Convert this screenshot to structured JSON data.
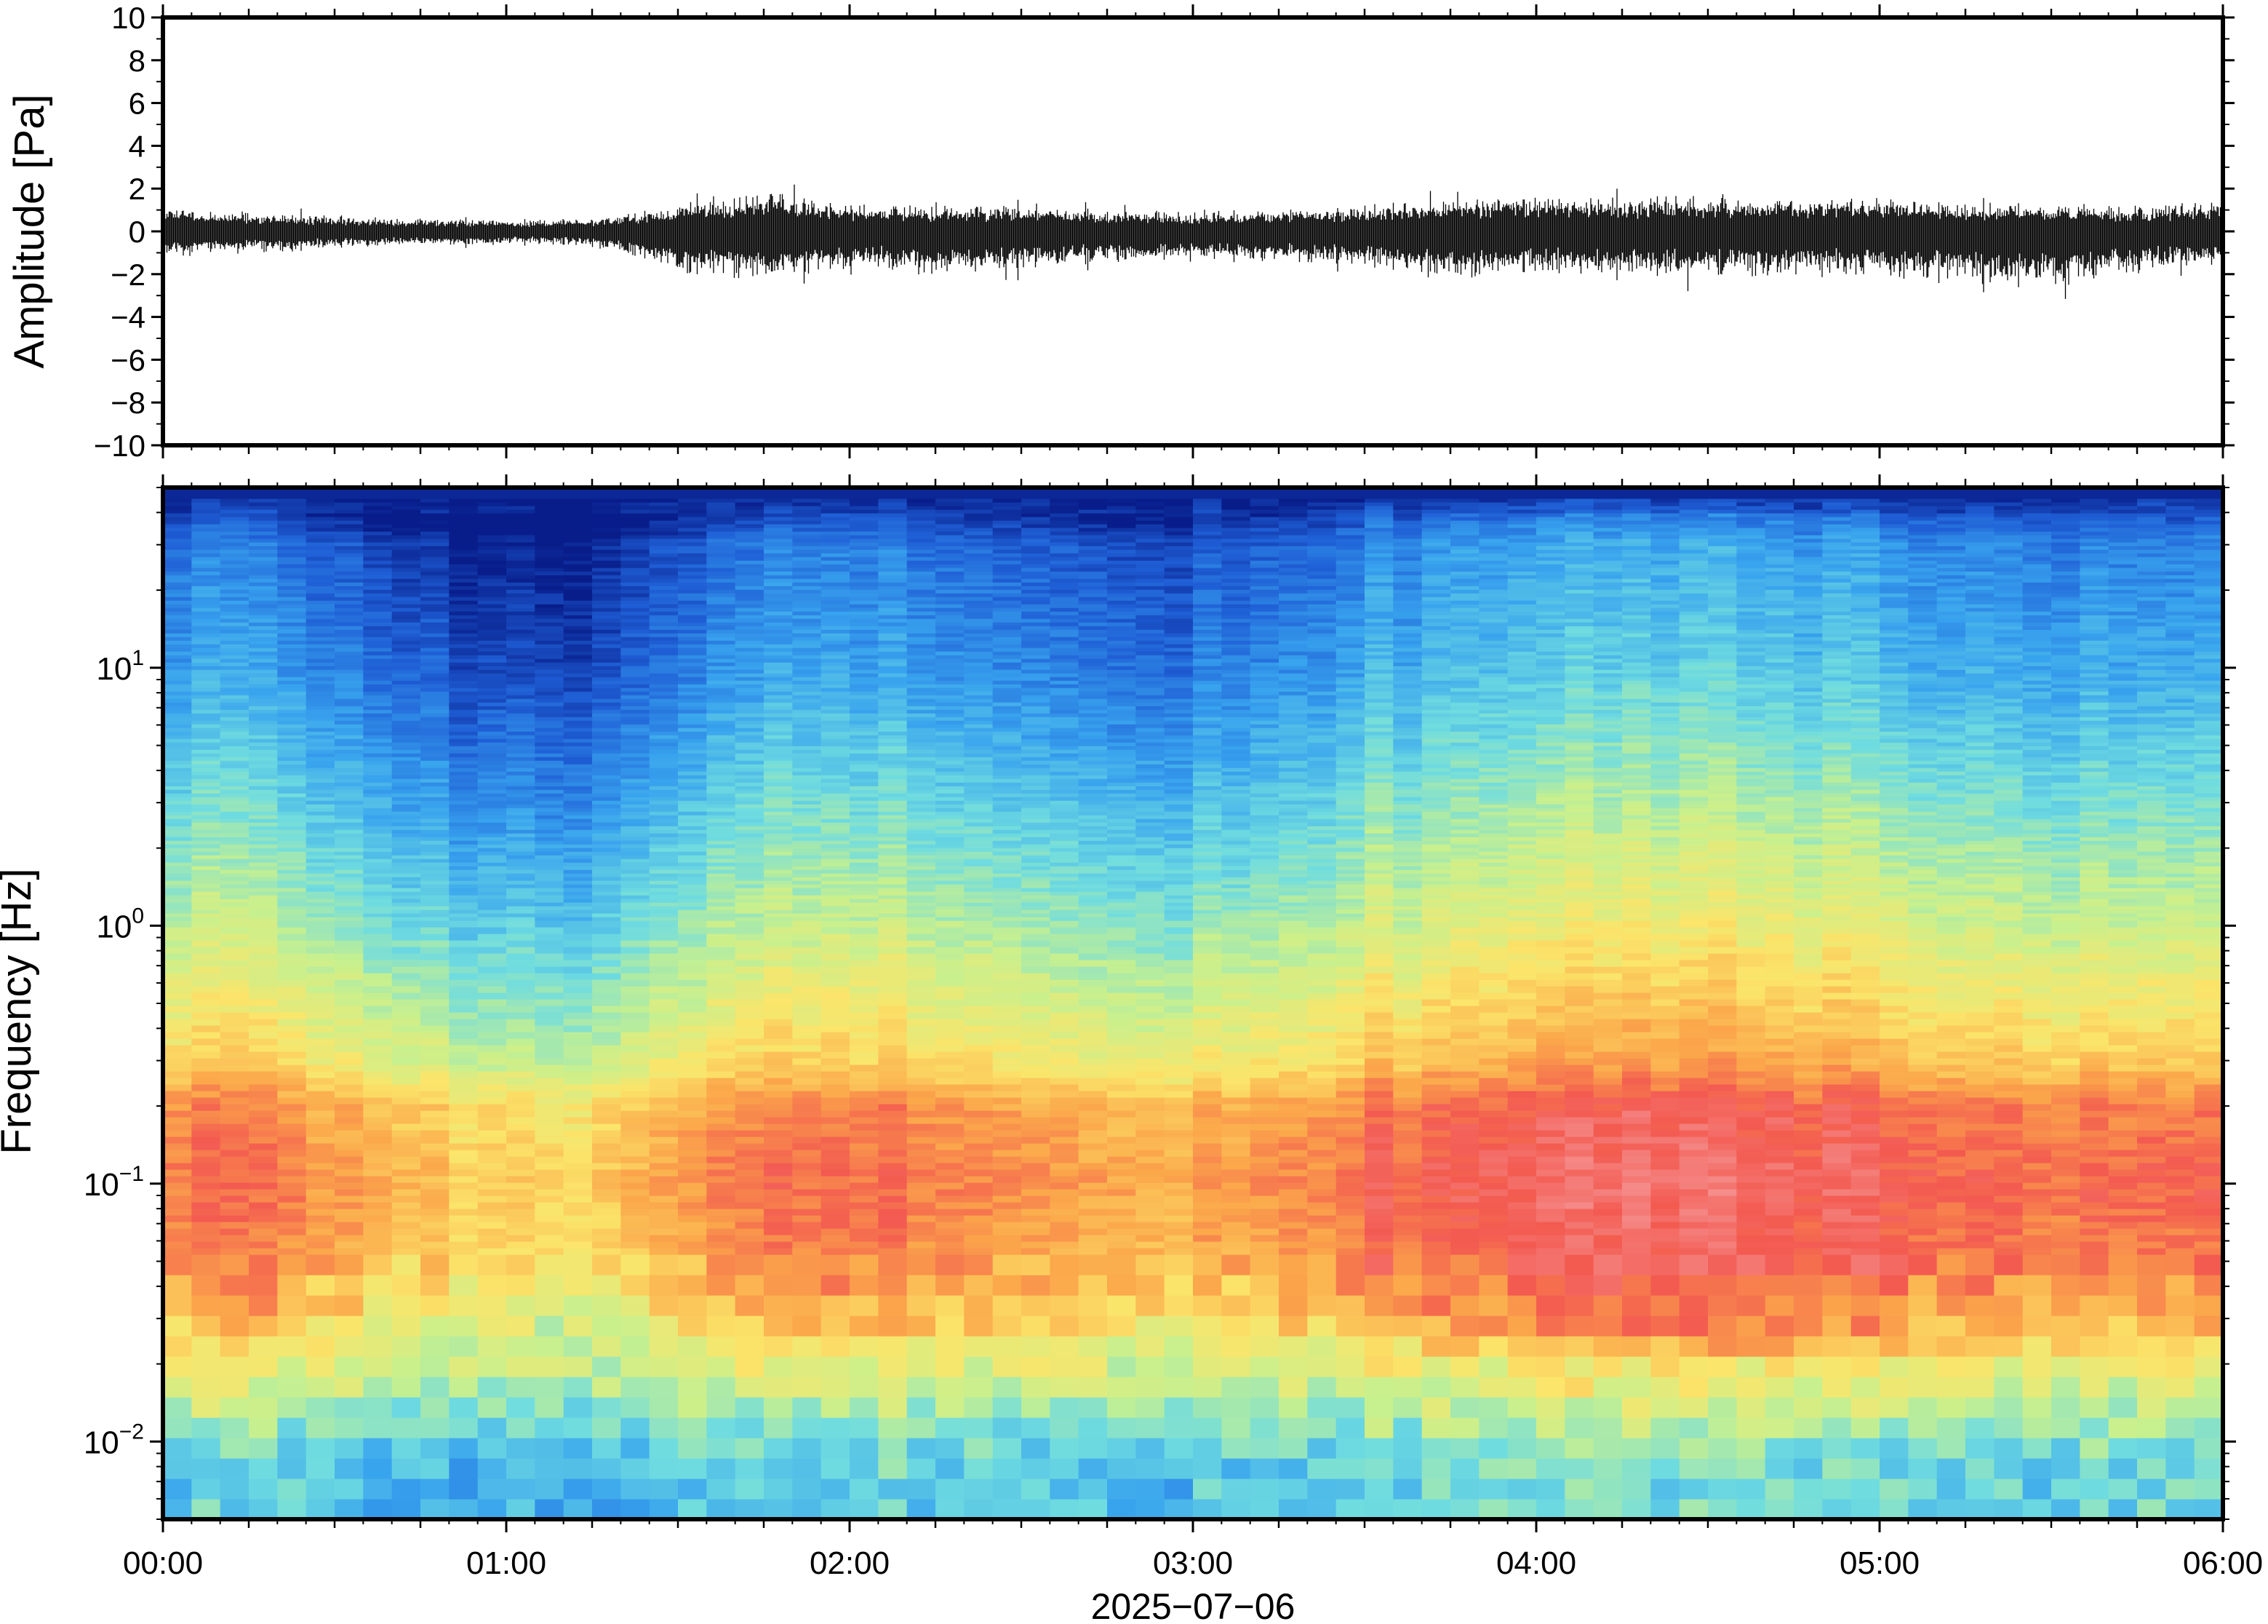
{
  "chart_data": [
    {
      "type": "line",
      "title": "",
      "xlabel": "",
      "ylabel": "Amplitude [Pa]",
      "ylim": [
        -10,
        10
      ],
      "yticks": [
        10,
        8,
        6,
        4,
        2,
        0,
        -2,
        -4,
        -6,
        -8,
        -10
      ],
      "ytick_labels": [
        "10",
        "8",
        "6",
        "4",
        "2",
        "0",
        "−2",
        "−4",
        "−6",
        "−8",
        "−10"
      ],
      "x": [
        "00:00",
        "00:15",
        "00:30",
        "00:45",
        "01:00",
        "01:15",
        "01:30",
        "01:45",
        "02:00",
        "02:15",
        "02:30",
        "02:45",
        "03:00",
        "03:15",
        "03:30",
        "03:45",
        "04:00",
        "04:15",
        "04:30",
        "04:45",
        "05:00",
        "05:15",
        "05:30",
        "05:45",
        "06:00"
      ],
      "series": [
        {
          "values_max": [
            1.5,
            1.2,
            1.0,
            0.8,
            0.7,
            0.8,
            1.6,
            2.5,
            1.7,
            1.5,
            1.6,
            1.4,
            1.2,
            1.3,
            1.6,
            2.0,
            2.3,
            2.1,
            2.2,
            2.0,
            2.1,
            1.8,
            1.7,
            1.6,
            1.9
          ],
          "values_min": [
            -1.5,
            -1.3,
            -1.1,
            -0.9,
            -0.8,
            -0.9,
            -2.5,
            -3.0,
            -2.3,
            -2.6,
            -2.3,
            -2.0,
            -1.8,
            -1.9,
            -2.2,
            -3.0,
            -2.7,
            -2.8,
            -2.9,
            -2.7,
            -2.8,
            -3.3,
            -3.5,
            -2.6,
            -2.0
          ],
          "color": "#000000"
        }
      ]
    },
    {
      "type": "heatmap",
      "title": "",
      "xlabel": "2025−07−06",
      "ylabel": "Frequency [Hz]",
      "y_scale": "log",
      "ylim": [
        0.005,
        50
      ],
      "ytick_labels": [
        {
          "base": "10",
          "exp": "1"
        },
        {
          "base": "10",
          "exp": "0"
        },
        {
          "base": "10",
          "exp": "−1"
        },
        {
          "base": "10",
          "exp": "−2"
        }
      ],
      "yticks": [
        10,
        1,
        0.1,
        0.01
      ],
      "xlim": [
        "00:00",
        "06:00"
      ],
      "xtick_labels": [
        "00:00",
        "01:00",
        "02:00",
        "03:00",
        "04:00",
        "05:00",
        "06:00"
      ],
      "colormap": [
        "#081d8a",
        "#1f5fd6",
        "#38a3ee",
        "#6fdce0",
        "#c8f08e",
        "#fbe56a",
        "#fba84b",
        "#f35a50",
        "#f59595"
      ],
      "frequency_rows": [
        0.007,
        0.01,
        0.02,
        0.03,
        0.05,
        0.1,
        0.2,
        0.3,
        1,
        3,
        10,
        30,
        50
      ],
      "level_profile": [
        0.35,
        0.4,
        0.58,
        0.72,
        0.8,
        0.84,
        0.8,
        0.66,
        0.5,
        0.38,
        0.25,
        0.18,
        0.0
      ],
      "column_activity": [
        0.0,
        0.0,
        -0.05,
        -0.12,
        -0.18,
        -0.16,
        -0.08,
        0.0,
        0.02,
        0.0,
        -0.04,
        -0.06,
        -0.08,
        -0.04,
        0.02,
        0.05,
        0.08,
        0.08,
        0.09,
        0.07,
        0.06,
        0.03,
        0.02,
        0.0,
        0.0
      ]
    }
  ]
}
